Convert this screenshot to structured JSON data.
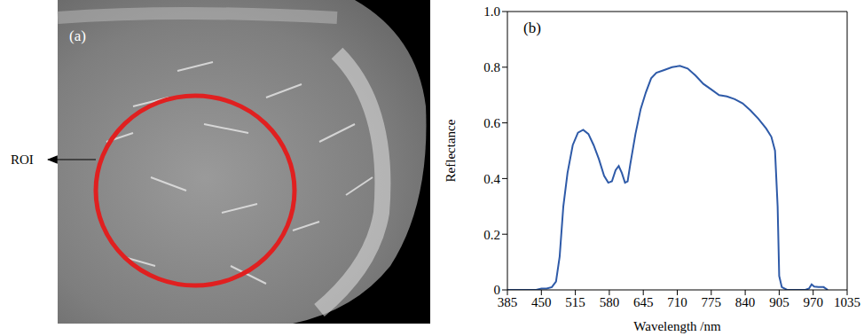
{
  "image_panel": {
    "label": "(a)",
    "annotation": "ROI"
  },
  "chart_data": {
    "type": "line",
    "label": "(b)",
    "x_label": "Wavelength /nm",
    "y_label": "Reflectance",
    "xlim": [
      385,
      1035
    ],
    "xticks": [
      385,
      450,
      515,
      580,
      645,
      710,
      775,
      840,
      905,
      970,
      1035
    ],
    "ylim": [
      0,
      1
    ],
    "yticks": [
      0,
      0.2,
      0.4,
      0.6,
      0.8,
      {
        "value": 1,
        "label": "1.0"
      }
    ],
    "grid": false,
    "series": [
      {
        "name": "Reflectance",
        "color": "#2e5aa8",
        "x": [
          385,
          400,
          420,
          440,
          450,
          460,
          470,
          478,
          485,
          492,
          500,
          510,
          520,
          530,
          540,
          550,
          560,
          570,
          578,
          585,
          592,
          598,
          604,
          610,
          615,
          620,
          630,
          640,
          650,
          660,
          670,
          685,
          700,
          715,
          730,
          745,
          760,
          775,
          790,
          805,
          820,
          835,
          850,
          865,
          880,
          890,
          897,
          902,
          905,
          910,
          920,
          940,
          955,
          962,
          967,
          972,
          980,
          990,
          998
        ],
        "values": [
          0,
          0,
          0,
          0,
          0.005,
          0.005,
          0.01,
          0.03,
          0.12,
          0.3,
          0.42,
          0.52,
          0.565,
          0.575,
          0.56,
          0.52,
          0.47,
          0.41,
          0.385,
          0.39,
          0.43,
          0.445,
          0.42,
          0.385,
          0.39,
          0.45,
          0.56,
          0.65,
          0.71,
          0.76,
          0.78,
          0.79,
          0.8,
          0.805,
          0.795,
          0.77,
          0.74,
          0.72,
          0.7,
          0.695,
          0.685,
          0.67,
          0.645,
          0.615,
          0.58,
          0.55,
          0.5,
          0.3,
          0.05,
          0.01,
          0,
          0,
          0,
          0.005,
          0.02,
          0.012,
          0.01,
          0.01,
          0
        ]
      }
    ]
  }
}
